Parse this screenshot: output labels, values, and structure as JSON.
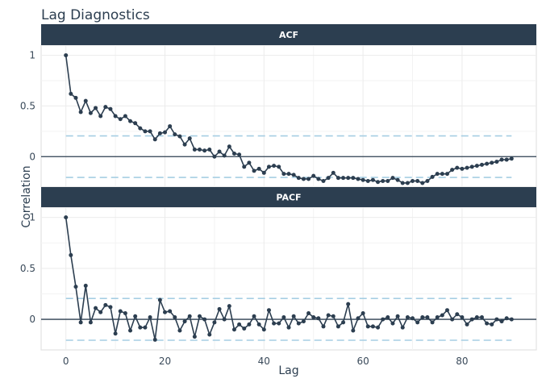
{
  "chart_data": {
    "type": "line",
    "title": "Lag Diagnostics",
    "xlabel": "Lag",
    "ylabel": "Correlation",
    "x_ticks": [
      "0",
      "20",
      "40",
      "60",
      "80"
    ],
    "xlim": [
      -5,
      95
    ],
    "grid": true,
    "colors": {
      "series": "#2c3e50",
      "bounds": "#a6cee3",
      "strip": "#2c3e50",
      "zero": "#2c3e50"
    },
    "panels": [
      {
        "name": "ACF",
        "ylim": [
          -0.3,
          1.1
        ],
        "y_ticks": [
          "0",
          "0.5",
          "1"
        ],
        "y_tick_values": [
          0,
          0.5,
          1
        ],
        "bounds": [
          0.205,
          -0.205
        ],
        "x_start": 0,
        "values": [
          1.0,
          0.62,
          0.58,
          0.44,
          0.55,
          0.43,
          0.48,
          0.4,
          0.49,
          0.47,
          0.4,
          0.37,
          0.4,
          0.35,
          0.33,
          0.28,
          0.25,
          0.25,
          0.17,
          0.23,
          0.24,
          0.3,
          0.22,
          0.2,
          0.12,
          0.18,
          0.07,
          0.07,
          0.06,
          0.07,
          0.0,
          0.05,
          0.01,
          0.1,
          0.03,
          0.02,
          -0.1,
          -0.06,
          -0.14,
          -0.12,
          -0.16,
          -0.1,
          -0.09,
          -0.1,
          -0.17,
          -0.17,
          -0.18,
          -0.21,
          -0.22,
          -0.22,
          -0.19,
          -0.22,
          -0.24,
          -0.21,
          -0.16,
          -0.21,
          -0.21,
          -0.21,
          -0.21,
          -0.22,
          -0.23,
          -0.24,
          -0.23,
          -0.25,
          -0.24,
          -0.24,
          -0.21,
          -0.23,
          -0.26,
          -0.26,
          -0.24,
          -0.24,
          -0.26,
          -0.24,
          -0.2,
          -0.17,
          -0.17,
          -0.17,
          -0.13,
          -0.11,
          -0.12,
          -0.11,
          -0.1,
          -0.09,
          -0.08,
          -0.07,
          -0.06,
          -0.05,
          -0.03,
          -0.03,
          -0.02
        ]
      },
      {
        "name": "PACF",
        "ylim": [
          -0.3,
          1.1
        ],
        "y_ticks": [
          "0",
          "0.5",
          "1"
        ],
        "y_tick_values": [
          0,
          0.5,
          1
        ],
        "bounds": [
          0.205,
          -0.205
        ],
        "x_start": 0,
        "values": [
          1.0,
          0.63,
          0.32,
          -0.03,
          0.33,
          -0.03,
          0.11,
          0.07,
          0.14,
          0.12,
          -0.14,
          0.08,
          0.06,
          -0.11,
          0.03,
          -0.08,
          -0.08,
          0.02,
          -0.2,
          0.19,
          0.07,
          0.08,
          0.02,
          -0.11,
          -0.02,
          0.03,
          -0.17,
          0.03,
          0.0,
          -0.15,
          -0.03,
          0.1,
          0.0,
          0.13,
          -0.1,
          -0.05,
          -0.09,
          -0.05,
          0.03,
          -0.05,
          -0.1,
          0.09,
          -0.04,
          -0.04,
          0.02,
          -0.08,
          0.03,
          -0.04,
          -0.02,
          0.06,
          0.02,
          0.01,
          -0.07,
          0.04,
          0.03,
          -0.07,
          -0.03,
          0.15,
          -0.11,
          0.01,
          0.06,
          -0.07,
          -0.07,
          -0.08,
          0.0,
          0.02,
          -0.04,
          0.03,
          -0.08,
          0.02,
          0.01,
          -0.03,
          0.02,
          0.02,
          -0.03,
          0.02,
          0.04,
          0.09,
          0.0,
          0.05,
          0.02,
          -0.05,
          0.0,
          0.02,
          0.02,
          -0.04,
          -0.05,
          0.0,
          -0.02,
          0.01,
          0.0
        ]
      }
    ]
  }
}
